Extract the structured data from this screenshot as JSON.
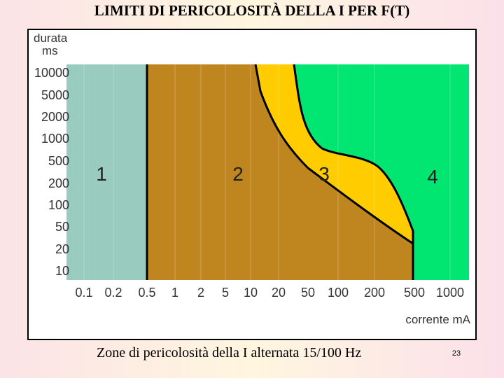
{
  "header": {
    "title": "LIMITI DI PERICOLOSITÀ DELLA I PER  F(T)"
  },
  "figure": {
    "y_axis_label": [
      "durata",
      "ms"
    ],
    "x_axis_label": "corrente mA",
    "y_tick_labels": [
      "10000",
      "5000",
      "2000",
      "1000",
      "500",
      "200",
      "100",
      "50",
      "20",
      "10"
    ],
    "x_tick_labels": [
      "0.1",
      "0.2",
      "0.5",
      "1",
      "2",
      "5",
      "10",
      "20",
      "50",
      "100",
      "200",
      "500",
      "1000"
    ],
    "zones": [
      "1",
      "2",
      "3",
      "4"
    ]
  },
  "caption": "Zone di pericolosità della I alternata 15/100 Hz",
  "page_number": "23"
}
